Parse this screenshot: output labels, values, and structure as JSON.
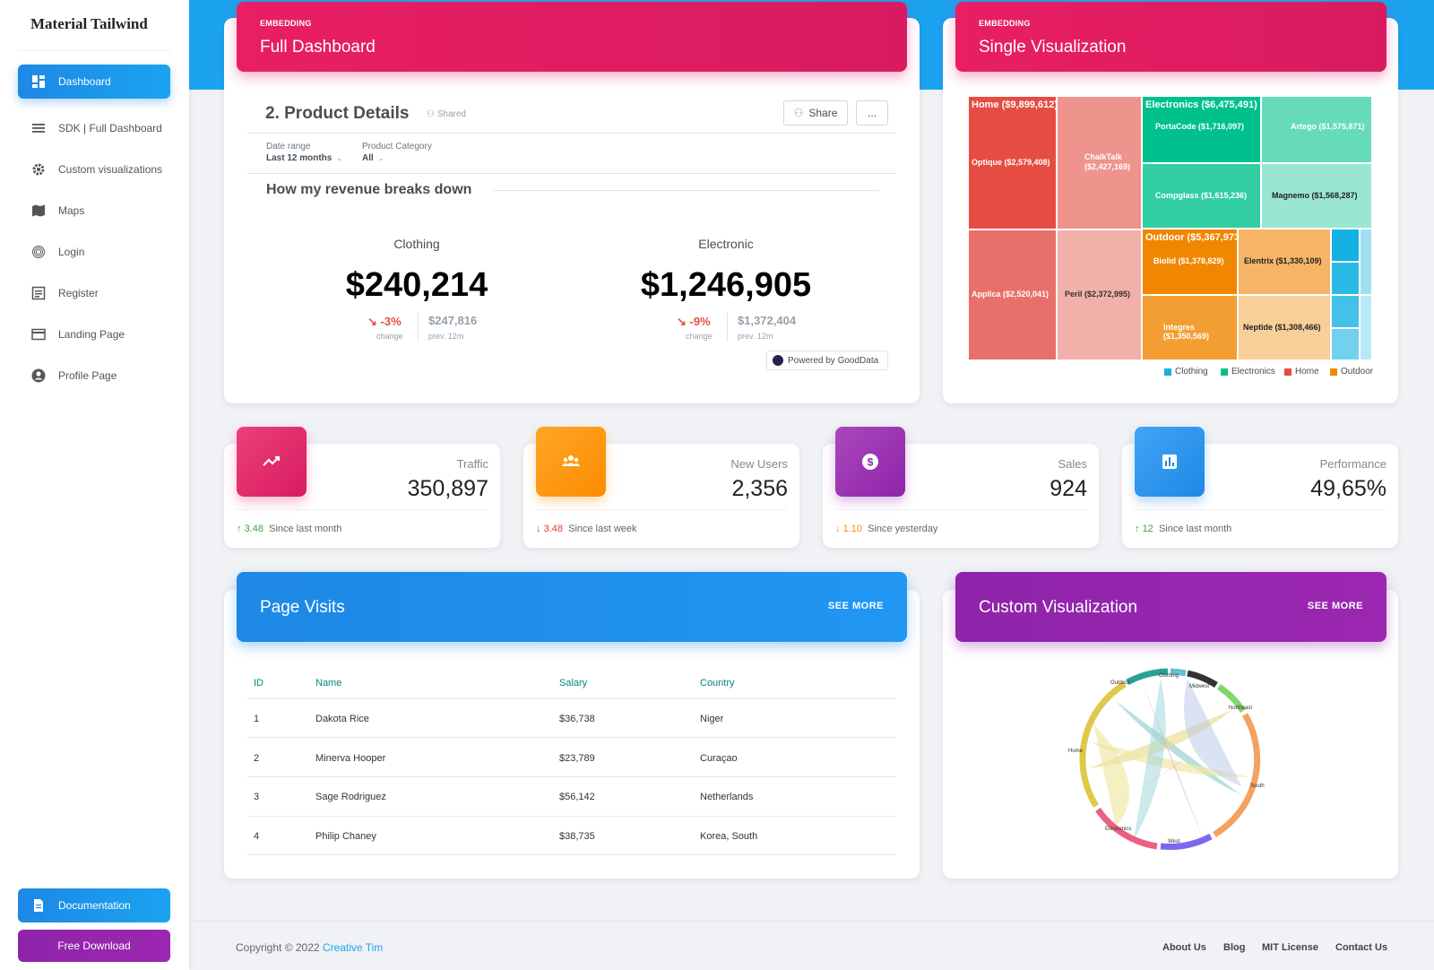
{
  "app": {
    "brand": "Material Tailwind"
  },
  "sidebar": {
    "items": [
      {
        "label": "Dashboard",
        "icon": "dashboard-icon",
        "active": true
      },
      {
        "label": "SDK | Full Dashboard",
        "icon": "list-icon"
      },
      {
        "label": "Custom visualizations",
        "icon": "gear-icon"
      },
      {
        "label": "Maps",
        "icon": "map-icon"
      },
      {
        "label": "Login",
        "icon": "fingerprint-icon"
      },
      {
        "label": "Register",
        "icon": "form-icon"
      },
      {
        "label": "Landing Page",
        "icon": "card-icon"
      },
      {
        "label": "Profile Page",
        "icon": "user-icon"
      }
    ],
    "documentation": "Documentation",
    "free_download": "Free Download"
  },
  "full_dashboard": {
    "tag": "EMBEDDING",
    "title": "Full Dashboard",
    "product_title": "2. Product Details",
    "shared": "Shared",
    "share_button": "Share",
    "more_button": "...",
    "filters": [
      {
        "label": "Date range",
        "value": "Last 12 months"
      },
      {
        "label": "Product Category",
        "value": "All"
      }
    ],
    "section_title": "How my revenue breaks down",
    "kpis": [
      {
        "label": "Clothing",
        "value": "$240,214",
        "change": "-3%",
        "change_label": "change",
        "prev": "$247,816",
        "prev_label": "prev. 12m"
      },
      {
        "label": "Electronic",
        "value": "$1,246,905",
        "change": "-9%",
        "change_label": "change",
        "prev": "$1,372,404",
        "prev_label": "prev. 12m"
      }
    ],
    "powered_by": "Powered by GoodData"
  },
  "single_viz": {
    "tag": "EMBEDDING",
    "title": "Single Visualization",
    "treemap": {
      "groups": [
        {
          "name": "Home ($9,899,612)",
          "color": "#e54d42"
        },
        {
          "name": "Electronics ($6,475,491)",
          "color": "#00c18d"
        },
        {
          "name": "Outdoor ($5,367,973)",
          "color": "#f18600"
        },
        {
          "name": "Clothing",
          "color": "#14b2e2"
        }
      ],
      "tiles": [
        "Optique ($2,579,408)",
        "ChalkTalk ($2,427,169)",
        "Applica ($2,520,041)",
        "Peril ($2,372,995)",
        "PortaCode ($1,716,097)",
        "Artego ($1,575,871)",
        "Compglass ($1,615,236)",
        "Magnemo ($1,568,287)",
        "Biolid ($1,378,829)",
        "Elentrix ($1,330,109)",
        "Integres ($1,350,569)",
        "Neptide ($1,308,466)"
      ],
      "legend": [
        "Clothing",
        "Electronics",
        "Home",
        "Outdoor"
      ]
    }
  },
  "stats": [
    {
      "label": "Traffic",
      "value": "350,897",
      "delta": "3.48",
      "dir": "up",
      "since": "Since last month",
      "color": "#e91e63",
      "icon": "trending-up-icon"
    },
    {
      "label": "New Users",
      "value": "2,356",
      "delta": "3.48",
      "dir": "down",
      "since": "Since last week",
      "color": "#fb8c00",
      "icon": "users-icon"
    },
    {
      "label": "Sales",
      "value": "924",
      "delta": "1.10",
      "dir": "warn",
      "since": "Since yesterday",
      "color": "#8e24aa",
      "icon": "dollar-icon"
    },
    {
      "label": "Performance",
      "value": "49,65%",
      "delta": "12",
      "dir": "up",
      "since": "Since last month",
      "color": "#1e88e5",
      "icon": "bar-chart-icon"
    }
  ],
  "page_visits": {
    "title": "Page Visits",
    "see_more": "SEE MORE",
    "columns": [
      "ID",
      "Name",
      "Salary",
      "Country"
    ],
    "rows": [
      [
        "1",
        "Dakota Rice",
        "$36,738",
        "Niger"
      ],
      [
        "2",
        "Minerva Hooper",
        "$23,789",
        "Curaçao"
      ],
      [
        "3",
        "Sage Rodriguez",
        "$56,142",
        "Netherlands"
      ],
      [
        "4",
        "Philip Chaney",
        "$38,735",
        "Korea, South"
      ]
    ]
  },
  "custom_viz": {
    "title": "Custom Visualization",
    "see_more": "SEE MORE",
    "chord_labels": [
      "Outdoor",
      "Clothing",
      "Midwest",
      "Northeast",
      "Home",
      "South",
      "Electronics",
      "West"
    ]
  },
  "footer": {
    "copyright": "Copyright © 2022",
    "author": "Creative Tim",
    "links": [
      "About Us",
      "Blog",
      "MIT License",
      "Contact Us"
    ]
  }
}
